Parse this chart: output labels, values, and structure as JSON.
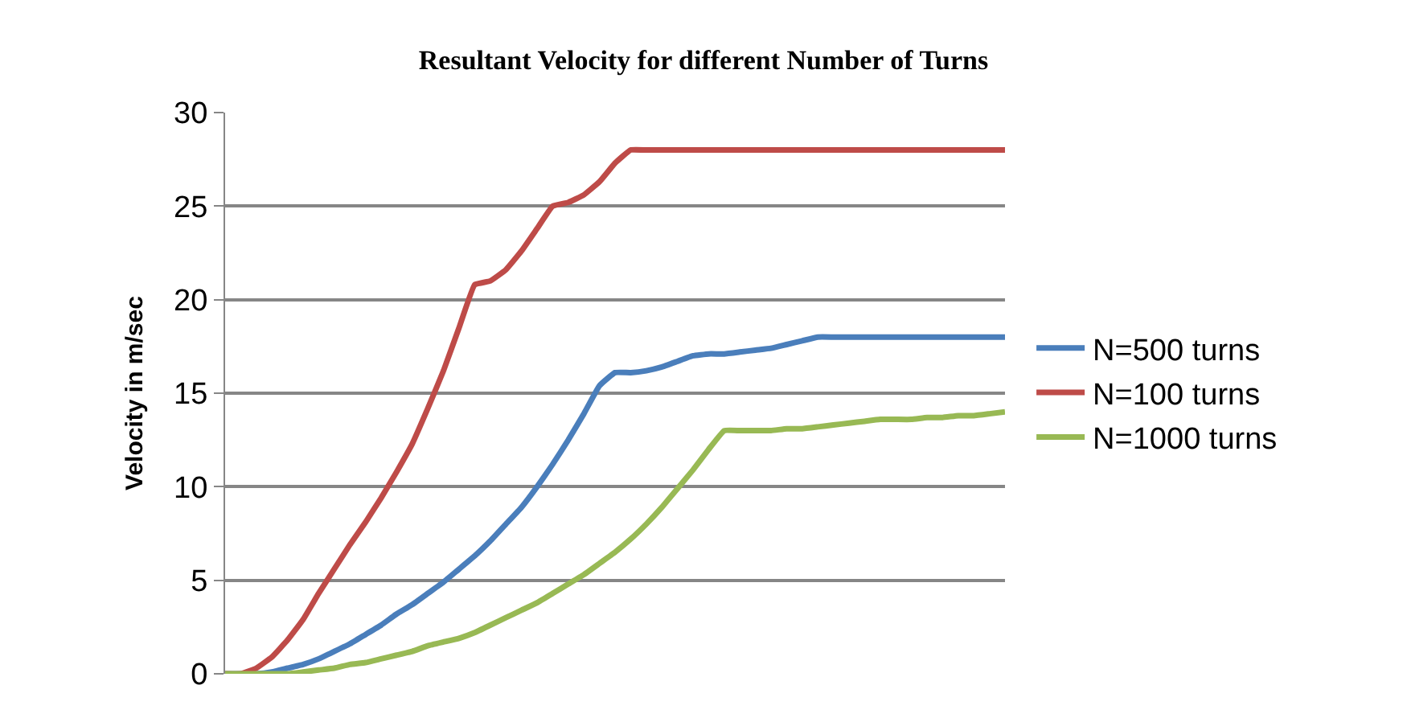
{
  "chart_data": {
    "type": "line",
    "title": "Resultant Velocity for different Number of Turns",
    "ylabel": "Velocity in m/sec",
    "categories": [
      null,
      null,
      null,
      null,
      null,
      null,
      null,
      null,
      null,
      null,
      null,
      null,
      null,
      null,
      null,
      null,
      null,
      null,
      null,
      null,
      null,
      null,
      null,
      null,
      null,
      null,
      null,
      null,
      null,
      null,
      null,
      null,
      null,
      null,
      null,
      null,
      null,
      null,
      null,
      null,
      null,
      null,
      null,
      null,
      null,
      null,
      null,
      null,
      null,
      null,
      null
    ],
    "series": [
      {
        "name": "N=500 turns",
        "color": "#4a7ebb",
        "values": [
          0,
          0,
          0,
          0.1,
          0.3,
          0.5,
          0.8,
          1.2,
          1.6,
          2.1,
          2.6,
          3.2,
          3.7,
          4.3,
          4.9,
          5.6,
          6.3,
          7.1,
          8.0,
          8.9,
          10.0,
          11.2,
          12.5,
          13.9,
          15.4,
          16.1,
          16.1,
          16.2,
          16.4,
          16.7,
          17.0,
          17.1,
          17.1,
          17.2,
          17.3,
          17.4,
          17.6,
          17.8,
          18.0,
          18.0,
          18.0,
          18.0,
          18.0,
          18.0,
          18.0,
          18.0,
          18.0,
          18.0,
          18.0,
          18.0,
          18.0
        ]
      },
      {
        "name": "N=100 turns",
        "color": "#be4b48",
        "values": [
          0,
          0,
          0.3,
          0.9,
          1.8,
          2.9,
          4.3,
          5.6,
          6.9,
          8.1,
          9.4,
          10.8,
          12.3,
          14.2,
          16.2,
          18.5,
          20.8,
          21.0,
          21.6,
          22.6,
          23.8,
          25.0,
          25.2,
          25.6,
          26.3,
          27.3,
          28,
          28,
          28,
          28,
          28,
          28,
          28,
          28,
          28,
          28,
          28,
          28,
          28,
          28,
          28,
          28,
          28,
          28,
          28,
          28,
          28,
          28,
          28,
          28,
          28
        ]
      },
      {
        "name": "N=1000 turns",
        "color": "#98b954",
        "values": [
          0,
          0,
          0,
          0,
          0,
          0.1,
          0.2,
          0.3,
          0.5,
          0.6,
          0.8,
          1.0,
          1.2,
          1.5,
          1.7,
          1.9,
          2.2,
          2.6,
          3.0,
          3.4,
          3.8,
          4.3,
          4.8,
          5.3,
          5.9,
          6.5,
          7.2,
          8.0,
          8.9,
          9.9,
          10.9,
          12.0,
          13.0,
          13.0,
          13.0,
          13.0,
          13.1,
          13.1,
          13.2,
          13.3,
          13.4,
          13.5,
          13.6,
          13.6,
          13.6,
          13.7,
          13.7,
          13.8,
          13.8,
          13.9,
          14.0
        ]
      }
    ],
    "ylim": [
      0,
      30
    ],
    "yticks": [
      0,
      5,
      10,
      15,
      20,
      25,
      30
    ],
    "grid": "y",
    "legend": "right",
    "marker": "none",
    "line_style": "solid"
  }
}
